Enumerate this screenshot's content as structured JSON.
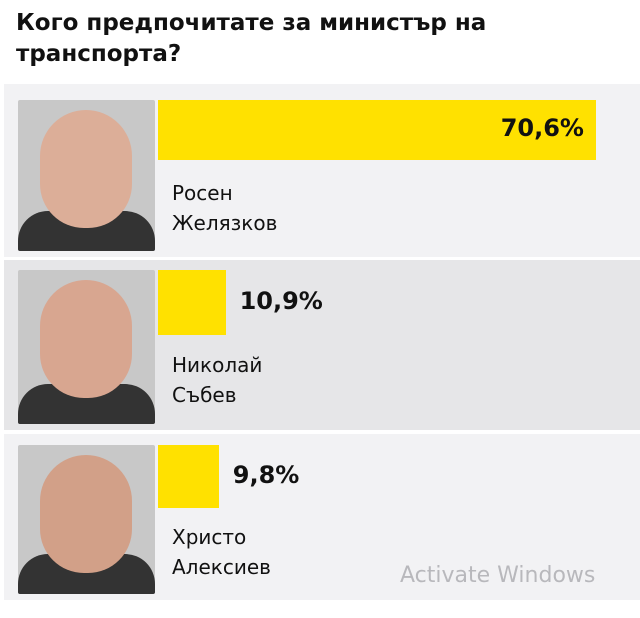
{
  "chart_data": {
    "type": "bar",
    "orientation": "horizontal",
    "title": "Кого предпочитате за министър на транспорта?",
    "categories": [
      "Росен Желязков",
      "Николай Събев",
      "Христо Алексиев"
    ],
    "values": [
      70.6,
      10.9,
      9.8
    ],
    "value_labels": [
      "70,6%",
      "10,9%",
      "9,8%"
    ],
    "unit": "%",
    "bar_color": "#ffe100",
    "candidates": [
      {
        "first": "Росен",
        "last": "Желязков",
        "label": "70,6%",
        "value": 70.6
      },
      {
        "first": "Николай",
        "last": "Събев",
        "label": "10,9%",
        "value": 10.9
      },
      {
        "first": "Христо",
        "last": "Алексиев",
        "label": "9,8%",
        "value": 9.8
      }
    ]
  },
  "watermark": "Activate Windows"
}
